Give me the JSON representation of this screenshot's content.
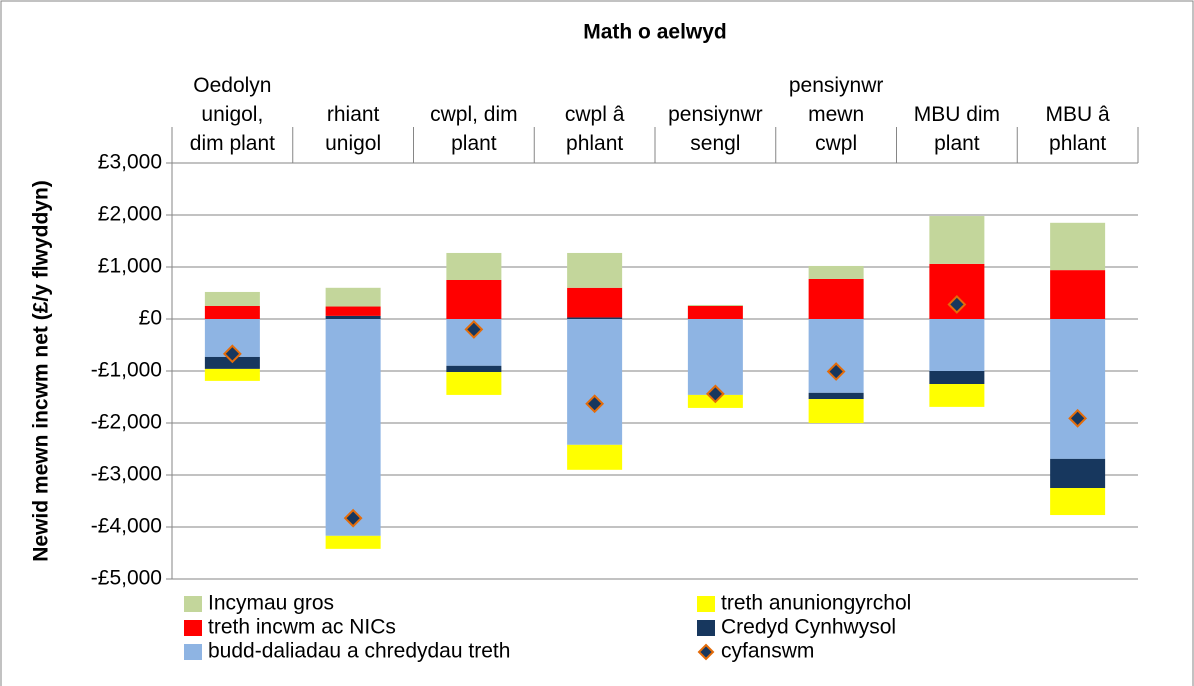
{
  "chart_data": {
    "type": "bar",
    "title": "Math o aelwyd",
    "y_label": "Newid mewn incwm net (£/y flwyddyn)",
    "categories": [
      "Oedolyn\nunigol,\ndim plant",
      "rhiant\nunigol",
      "cwpl, dim\nplant",
      "cwpl â\nphlant",
      "pensiynwr\nsengl",
      "pensiynwr\nmewn\ncwpl",
      "MBU dim\nplant",
      "MBU â\nphlant"
    ],
    "series": [
      {
        "name": "Incymau gros",
        "color": "#c3d69b",
        "values": [
          270,
          360,
          520,
          670,
          20,
          250,
          920,
          910
        ]
      },
      {
        "name": "treth anuniongyrchol",
        "color": "#ffff00",
        "values": [
          -230,
          -250,
          -440,
          -480,
          -250,
          -460,
          -440,
          -520
        ]
      },
      {
        "name": "treth incwm ac NICs",
        "color": "#ff0000",
        "values": [
          250,
          180,
          750,
          570,
          250,
          770,
          1060,
          940
        ]
      },
      {
        "name": "Credyd Cynhwysol",
        "color": "#17375e",
        "values": [
          -230,
          60,
          -120,
          30,
          0,
          -120,
          -250,
          -560
        ]
      },
      {
        "name": "budd-daliadau a chredydau treth",
        "color": "#8eb4e3",
        "values": [
          -730,
          -4170,
          -900,
          -2420,
          -1460,
          -1420,
          -1000,
          -2690
        ]
      },
      {
        "name": "cyfanswm",
        "type": "scatter",
        "color": "#17375e",
        "edge_color": "#e46c0a",
        "values": [
          -670,
          -3830,
          -200,
          -1630,
          -1440,
          -1010,
          280,
          -1910
        ]
      }
    ],
    "ylim": [
      -5000,
      3000
    ],
    "yticks": [
      {
        "value": -5000,
        "label": "-£5,000"
      },
      {
        "value": -4000,
        "label": "-£4,000"
      },
      {
        "value": -3000,
        "label": "-£3,000"
      },
      {
        "value": -2000,
        "label": "-£2,000"
      },
      {
        "value": -1000,
        "label": "-£1,000"
      },
      {
        "value": 0,
        "label": "£0"
      },
      {
        "value": 1000,
        "label": "£1,000"
      },
      {
        "value": 2000,
        "label": "£2,000"
      },
      {
        "value": 3000,
        "label": "£3,000"
      }
    ],
    "grid": true,
    "legend": "bottom"
  }
}
